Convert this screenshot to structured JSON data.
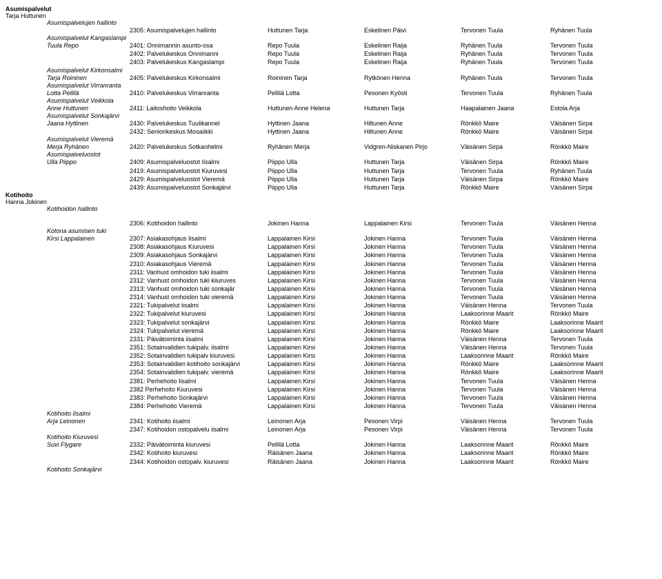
{
  "section1": {
    "title": "Asumispalvelut",
    "owner": "Tarja Huttunen",
    "groups": [
      {
        "heading": "Asumispalvelujen hallinto",
        "rows": [
          {
            "label": "",
            "code": "2305: Asumispalvelujen hallinto",
            "c1": "Huttunen Tarja",
            "c2": "Eskelinen Päivi",
            "c3": "Tervonen Tuula",
            "c4": "Ryhänen Tuula"
          }
        ]
      },
      {
        "heading": "Asumispalvelut Kangaslampi",
        "rows": [
          {
            "label": "Tuula Repo",
            "code": "2401: Onnimannin asunto-osa",
            "c1": "Repo Tuula",
            "c2": "Eskelinen Raija",
            "c3": "Ryhänen Tuula",
            "c4": "Tervonen Tuula"
          },
          {
            "label": "",
            "code": "2402: Palvelukeskus Onnimanni",
            "c1": "Repo Tuula",
            "c2": "Eskelinen Raija",
            "c3": "Ryhänen Tuula",
            "c4": "Tervonen Tuula"
          },
          {
            "label": "",
            "code": "2403: Palvelukeskus Kangaslampi",
            "c1": "Repo Tuula",
            "c2": "Eskelinen Raija",
            "c3": "Ryhänen Tuula",
            "c4": "Tervonen Tuula"
          }
        ]
      },
      {
        "heading": "Asumispalvelut Kirkonsalmi",
        "rows": [
          {
            "label": "Tarja Roininen",
            "code": "2405: Palvelukeskus Kirkonsalmi",
            "c1": "Roininen Tarja",
            "c2": "Rytkönen Henna",
            "c3": "Ryhänen Tuula",
            "c4": "Tervonen Tuula"
          }
        ]
      },
      {
        "heading": "Asumispalvelut Virranranta",
        "rows": [
          {
            "label": "Lotta Pellilä",
            "code": "2410: Palvelukeskus Virranranta",
            "c1": "Pellilä Lotta",
            "c2": "Pesonen Kyösti",
            "c3": "Tervonen Tuula",
            "c4": "Ryhänen Tuula"
          }
        ]
      },
      {
        "heading": "Asumispalvelut Veikkola",
        "rows": [
          {
            "label": "Anne Huttunen",
            "code": "2411: Laitoshoito Veikkola",
            "c1": "Huttunen Anne Helena",
            "c2": "Huttunen Tarja",
            "c3": "Haapalainen Jaana",
            "c4": "Estola Arja"
          }
        ]
      },
      {
        "heading": "Asumispalvelut Sonkajärvi",
        "rows": [
          {
            "label": "Jaana Hyttinen",
            "code": "2430: Palvelukeskus Tuulikannel",
            "c1": "Hyttinen Jaana",
            "c2": "Hiltunen Anne",
            "c3": "Rönkkö Maire",
            "c4": "Väisänen Sirpa"
          },
          {
            "label": "",
            "code": "2432: Seniorikeskus Mosaiikki",
            "c1": "Hyttinen Jaana",
            "c2": "Hiltunen Anne",
            "c3": "Rönkkö Maire",
            "c4": "Väisänen Sirpa"
          }
        ]
      },
      {
        "heading": "Asumispalvelut Vieremä",
        "rows": [
          {
            "label": "Merja Ryhänen",
            "code": "2420: Palvelukeskus Sotkanhelmi",
            "c1": "Ryhänen Merja",
            "c2": "Vidgren-Niskanen Pirjo",
            "c3": "Väisänen Sirpa",
            "c4": "Rönkkö Maire"
          }
        ]
      },
      {
        "heading": "Asumispalveluostot",
        "rows": [
          {
            "label": "Ulla Piippo",
            "code": "2409: Asumispalveluostot Iisalmi",
            "c1": "Piippo Ulla",
            "c2": "Huttunen Tarja",
            "c3": "Väisänen Sirpa",
            "c4": "Rönkkö Maire"
          },
          {
            "label": "",
            "code": "2419: Asumispalveluostot Kiuruvesi",
            "c1": "Piippo Ulla",
            "c2": "Huttunen Tarja",
            "c3": "Tervonen Tuula",
            "c4": "Ryhänen Tuula"
          },
          {
            "label": "",
            "code": "2429: Asumispalveluostot Vieremä",
            "c1": "Piippo Ulla",
            "c2": "Huttunen Tarja",
            "c3": "Väisänen Sirpa",
            "c4": "Rönkkö Maire"
          },
          {
            "label": "",
            "code": "2439: Asumispalveluostot Sonkajärvi",
            "c1": "Piippo Ulla",
            "c2": "Huttunen Tarja",
            "c3": "Rönkkö Maire",
            "c4": "Väisänen Sirpa"
          }
        ]
      }
    ]
  },
  "section2": {
    "title": "Kotihoito",
    "owner": "Hanna Jokinen",
    "groups": [
      {
        "heading": "Kotihoidon hallinto",
        "spacer": true,
        "rows": [
          {
            "label": "",
            "code": "2306: Kotihoidon hallinto",
            "c1": "Jokinen Hanna",
            "c2": "Lappalainen Kirsi",
            "c3": "Tervonen Tuula",
            "c4": "Väisänen Henna"
          }
        ]
      },
      {
        "heading": "Kotona asumisen tuki",
        "rows": [
          {
            "label": "Kirsi Lappalainen",
            "code": "2307: Asiakasohjaus Iisalmi",
            "c1": "Lappalainen Kirsi",
            "c2": "Jokinen Hanna",
            "c3": "Tervonen Tuula",
            "c4": "Väisänen Henna"
          },
          {
            "label": "",
            "code": "2308: Asiakasohjaus Kiuruvesi",
            "c1": "Lappalainen Kirsi",
            "c2": "Jokinen Hanna",
            "c3": "Tervonen Tuula",
            "c4": "Väisänen Henna"
          },
          {
            "label": "",
            "code": "2309: Asiakasohjaus Sonkajärvi",
            "c1": "Lappalainen Kirsi",
            "c2": "Jokinen Hanna",
            "c3": "Tervonen Tuula",
            "c4": "Väisänen Henna"
          },
          {
            "label": "",
            "code": "2310: Asiakasohjaus Vieremä",
            "c1": "Lappalainen Kirsi",
            "c2": "Jokinen Hanna",
            "c3": "Tervonen Tuula",
            "c4": "Väisänen Henna"
          },
          {
            "label": "",
            "code": "2311: Vanhust omhoidon tuki iisalmi",
            "c1": "Lappalainen Kirsi",
            "c2": "Jokinen Hanna",
            "c3": "Tervonen Tuula",
            "c4": "Väisänen Henna"
          },
          {
            "label": "",
            "code": "2312: Vanhust omhoidon tuki kiiuruves",
            "c1": "Lappalainen Kirsi",
            "c2": "Jokinen Hanna",
            "c3": "Tervonen Tuula",
            "c4": "Väisänen Henna"
          },
          {
            "label": "",
            "code": "2313: Vanhust omhoidon tuki sonkajär",
            "c1": "Lappalainen Kirsi",
            "c2": "Jokinen Hanna",
            "c3": "Tervonen Tuula",
            "c4": "Väisänen Henna"
          },
          {
            "label": "",
            "code": "2314: Vanhust omhoidon tuki vieremä",
            "c1": "Lappalainen Kirsi",
            "c2": "Jokinen Hanna",
            "c3": "Tervonen Tuula",
            "c4": "Väisänen Henna"
          },
          {
            "label": "",
            "code": "2321: Tukipalvelut iisalmi",
            "c1": "Lappalainen Kirsi",
            "c2": "Jokinen Hanna",
            "c3": "Väisänen Henna",
            "c4": "Tervonen Tuula"
          },
          {
            "label": "",
            "code": "2322: Tukipalvelut kiuruvesi",
            "c1": "Lappalainen Kirsi",
            "c2": "Jokinen Hanna",
            "c3": "Laaksorinne Maarit",
            "c4": "Rönkkö Maire"
          },
          {
            "label": "",
            "code": "2323: Tukipalvelut sonkajärvi",
            "c1": "Lappalainen Kirsi",
            "c2": "Jokinen Hanna",
            "c3": "Rönkkö Maire",
            "c4": "Laaksorinne Maarit"
          },
          {
            "label": "",
            "code": "2324: Tukipalvelut vieremä",
            "c1": "Lappalainen Kirsi",
            "c2": "Jokinen Hanna",
            "c3": "Rönkkö Maire",
            "c4": "Laaksorinne Maarit"
          },
          {
            "label": "",
            "code": "2331: Päivätoiminta iisalmi",
            "c1": "Lappalainen Kirsi",
            "c2": "Jokinen Hanna",
            "c3": "Väisänen Henna",
            "c4": "Tervonen Tuula"
          },
          {
            "label": "",
            "code": "2351: Sotainvalidien tukipalv. iisalmi",
            "c1": "Lappalainen Kirsi",
            "c2": "Jokinen Hanna",
            "c3": "Väisänen Henna",
            "c4": "Tervonen Tuula"
          },
          {
            "label": "",
            "code": "2352: Sotainvalidien tukipalv kiuruvesi",
            "c1": "Lappalainen Kirsi",
            "c2": "Jokinen Hanna",
            "c3": "Laaksorinne Maarit",
            "c4": "Rönkkö Maire"
          },
          {
            "label": "",
            "code": "2353: Sotainvalidien kotihoito sonkajärvi",
            "c1": "Lappalainen Kirsi",
            "c2": "Jokinen Hanna",
            "c3": "Rönkkö Maire",
            "c4": "Laaksorinne Maarit"
          },
          {
            "label": "",
            "code": "2354: Sotainvalidien tukipalv. vieremä",
            "c1": "Lappalainen Kirsi",
            "c2": "Jokinen Hanna",
            "c3": "Rönkkö Maire",
            "c4": "Laaksorinne Maarit"
          },
          {
            "label": "",
            "code": "2381: Perhehoito Iisalmi",
            "c1": "Lappalainen Kirsi",
            "c2": "Jokinen Hanna",
            "c3": "Tervonen Tuula",
            "c4": "Väisänen Henna"
          },
          {
            "label": "",
            "code": "2382 Perhehoito Kiuruvesi",
            "c1": "Lappalainen Kirsi",
            "c2": "Jokinen Hanna",
            "c3": "Tervonen Tuula",
            "c4": "Väisänen Henna"
          },
          {
            "label": "",
            "code": "2383: Perhehoito Sonkajärvi",
            "c1": "Lappalainen Kirsi",
            "c2": "Jokinen Hanna",
            "c3": "Tervonen Tuula",
            "c4": "Väisänen Henna"
          },
          {
            "label": "",
            "code": "2384: Perhehoito Vieremä",
            "c1": "Lappalainen Kirsi",
            "c2": "Jokinen Hanna",
            "c3": "Tervonen Tuula",
            "c4": "Väisänen Henna"
          }
        ]
      },
      {
        "heading": "Kotihoito Iisalmi",
        "rows": [
          {
            "label": "Arja Leinonen",
            "code": "2341: Kotihoito iisalmi",
            "c1": "Leinonen Arja",
            "c2": "Pesonen Virpi",
            "c3": "Väisänen Henna",
            "c4": "Tervonen Tuula"
          },
          {
            "label": "",
            "code": "2347: Kotihoidon ostopalvelu iisalmi",
            "c1": "Leinonen Arja",
            "c2": "Pesonen Virpi",
            "c3": "Väisänen Henna",
            "c4": "Tervonen Tuula"
          }
        ]
      },
      {
        "heading": "Kotihoito Kiuruvesi",
        "rows": [
          {
            "label": "Suvi Flygare",
            "code": "2332: Päivätoiminta kiuruvesi",
            "c1": "Pellilä Lotta",
            "c2": "Jokinen Hanna",
            "c3": "Laaksorinne Maarit",
            "c4": "Rönkkö Maire"
          },
          {
            "label": "",
            "code": "2342: Kotihoito kiuruvesi",
            "c1": "Räisänen Jaana",
            "c2": "Jokinen Hanna",
            "c3": "Laaksorinne Maarit",
            "c4": "Rönkkö Maire"
          },
          {
            "label": "",
            "code": "2344: Kotihoidon ostopalv. kiuruvesi",
            "c1": "Räisänen Jaana",
            "c2": "Jokinen Hanna",
            "c3": "Laaksorinne Maarit",
            "c4": "Rönkkö Maire"
          }
        ]
      },
      {
        "heading": "Kotihoito Sonkajärvi",
        "rows": []
      }
    ]
  }
}
